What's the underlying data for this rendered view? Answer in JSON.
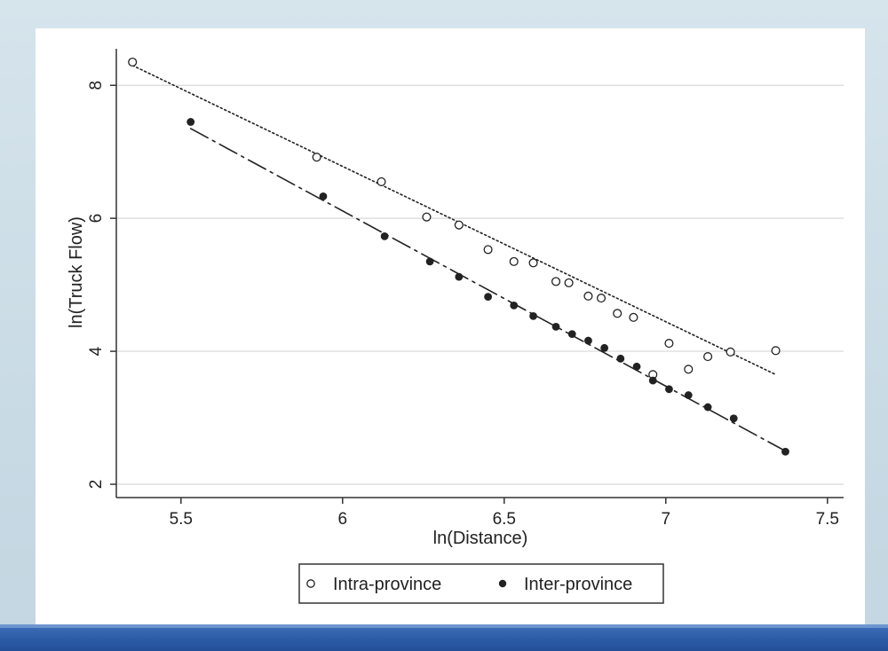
{
  "chart_data": {
    "type": "scatter",
    "title": "",
    "xlabel": "ln(Distance)",
    "ylabel": "ln(Truck Flow)",
    "xlim": [
      5.3,
      7.55
    ],
    "ylim": [
      1.8,
      8.55
    ],
    "xticks": [
      "5.5",
      "6",
      "6.5",
      "7",
      "7.5"
    ],
    "yticks": [
      "2",
      "4",
      "6",
      "8"
    ],
    "grid": "horizontal",
    "legend_position": "bottom",
    "series": [
      {
        "name": "Intra-province",
        "marker": "hollow-circle",
        "line": "dotted",
        "color": "#222222",
        "x": [
          5.35,
          5.92,
          6.12,
          6.26,
          6.36,
          6.45,
          6.53,
          6.59,
          6.66,
          6.7,
          6.76,
          6.8,
          6.85,
          6.9,
          6.96,
          7.01,
          7.07,
          7.13,
          7.2,
          7.34
        ],
        "y": [
          8.35,
          6.92,
          6.55,
          6.02,
          5.9,
          5.53,
          5.35,
          5.33,
          5.05,
          5.03,
          4.83,
          4.8,
          4.57,
          4.51,
          3.65,
          4.12,
          3.73,
          3.92,
          3.99,
          4.01
        ],
        "fit": {
          "x": [
            5.35,
            7.34
          ],
          "y": [
            8.3,
            3.65
          ]
        }
      },
      {
        "name": "Inter-province",
        "marker": "filled-circle",
        "line": "long-dash",
        "color": "#222222",
        "x": [
          5.53,
          5.94,
          6.13,
          6.27,
          6.36,
          6.45,
          6.53,
          6.59,
          6.66,
          6.71,
          6.76,
          6.81,
          6.86,
          6.91,
          6.96,
          7.01,
          7.07,
          7.13,
          7.21,
          7.37
        ],
        "y": [
          7.45,
          6.33,
          5.73,
          5.35,
          5.12,
          4.82,
          4.69,
          4.53,
          4.37,
          4.26,
          4.16,
          4.05,
          3.89,
          3.77,
          3.56,
          3.43,
          3.34,
          3.16,
          2.99,
          2.49
        ],
        "fit": {
          "x": [
            5.53,
            7.37
          ],
          "y": [
            7.35,
            2.5
          ]
        }
      }
    ]
  }
}
